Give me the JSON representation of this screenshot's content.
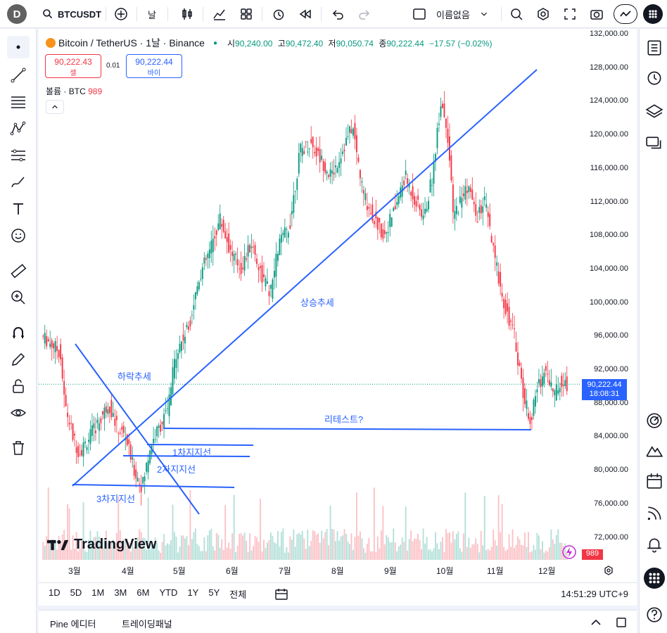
{
  "header": {
    "avatar_letter": "D",
    "symbol": "BTCUSDT",
    "interval": "날",
    "layout_name": "이름없음"
  },
  "legend": {
    "title": "Bitcoin / TetherUS · 1날 · Binance",
    "open_label": "시",
    "open": "90,240.00",
    "high_label": "고",
    "high": "90,472.40",
    "low_label": "저",
    "low": "90,050.74",
    "close_label": "종",
    "close": "90,222.44",
    "change": "−17.57 (−0.02%)",
    "sell_price": "90,222.43",
    "sell_label": "셀",
    "buy_price": "90,222.44",
    "buy_label": "바이",
    "spread": "0.01",
    "volume_label": "볼륨 · BTC",
    "volume_value": "989"
  },
  "price_axis": {
    "ticks": [
      "132,000.00",
      "128,000.00",
      "124,000.00",
      "120,000.00",
      "116,000.00",
      "112,000.00",
      "108,000.00",
      "104,000.00",
      "100,000.00",
      "96,000.00",
      "92,000.00",
      "88,000.00",
      "84,000.00",
      "80,000.00",
      "76,000.00",
      "72,000.00"
    ],
    "last_price": "90,222.44",
    "countdown": "18:08:31",
    "volume_tag": "989"
  },
  "time_axis": {
    "ticks": [
      "3월",
      "4월",
      "5월",
      "6월",
      "7월",
      "8월",
      "9월",
      "10월",
      "11월",
      "12월"
    ]
  },
  "annotations": {
    "uptrend": "상승추세",
    "downtrend": "하락추세",
    "retest": "리테스트?",
    "support1": "1차지지선",
    "support2": "2차지지선",
    "support3": "3차지지선"
  },
  "watermark": "TradingView",
  "ranges": [
    "1D",
    "5D",
    "1M",
    "3M",
    "6M",
    "YTD",
    "1Y",
    "5Y",
    "전체"
  ],
  "clock": "14:51:29 UTC+9",
  "footer": {
    "pine_editor": "Pine 에디터",
    "trading_panel": "트레이딩패널"
  },
  "colors": {
    "up": "#089981",
    "down": "#f23645",
    "accent": "#2962ff"
  }
}
